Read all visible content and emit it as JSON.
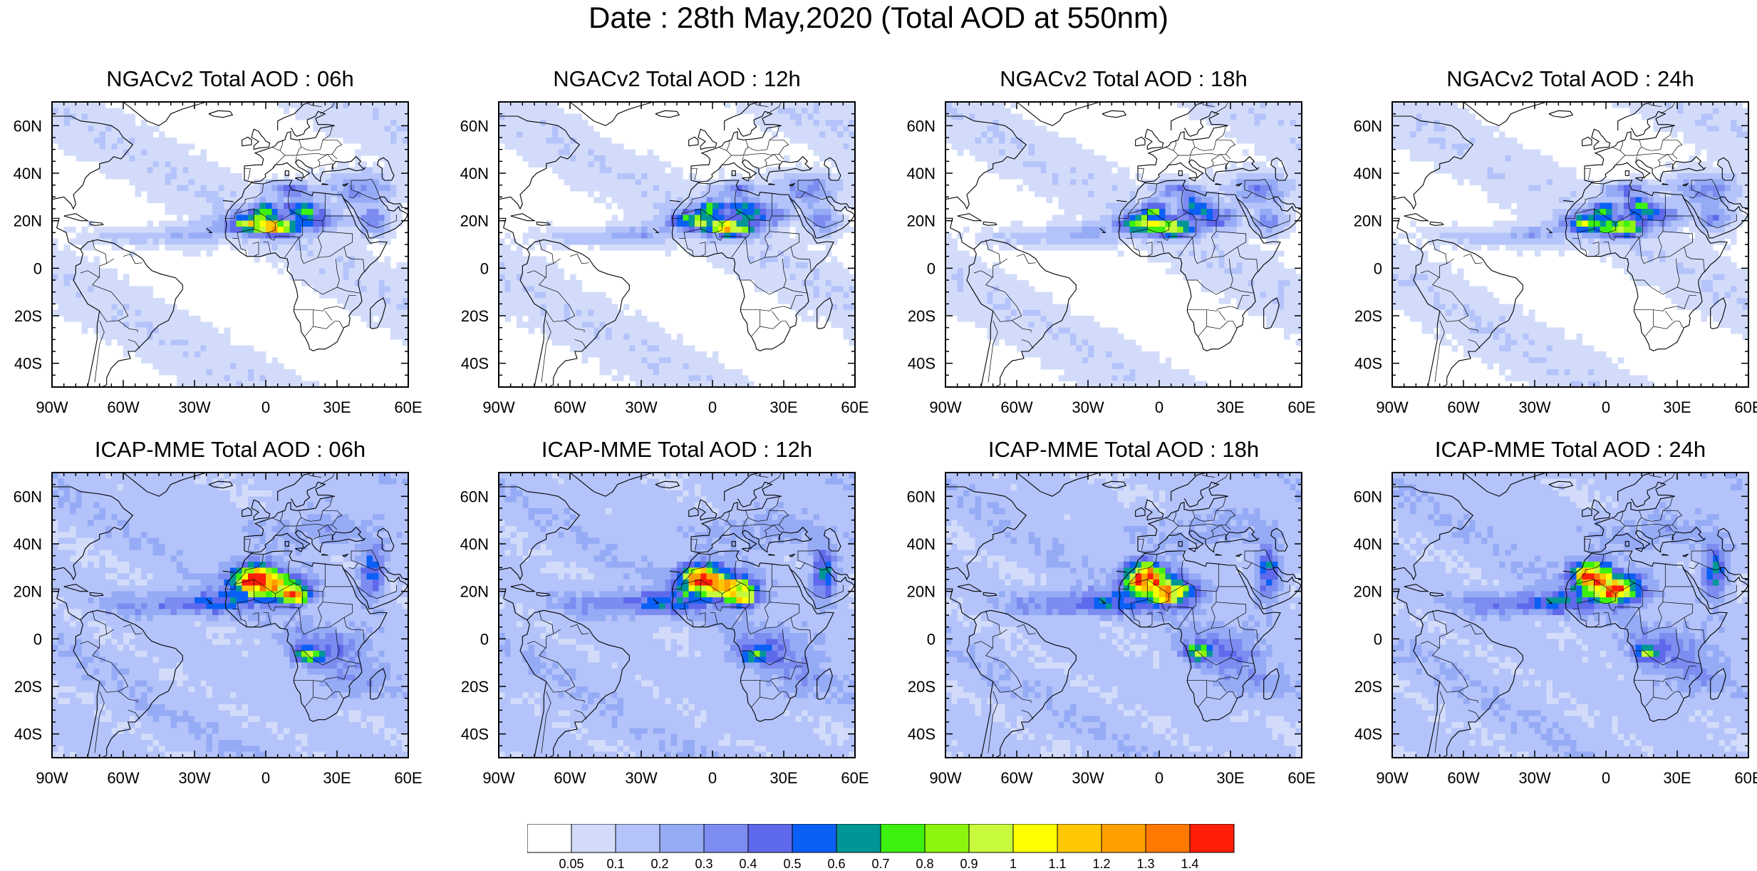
{
  "title": "Date : 28th May,2020 (Total AOD at 550nm)",
  "panels": [
    {
      "title": "NGACv2 Total AOD : 06h",
      "model": "NGACv2",
      "hour": "06h"
    },
    {
      "title": "NGACv2 Total AOD : 12h",
      "model": "NGACv2",
      "hour": "12h"
    },
    {
      "title": "NGACv2 Total AOD : 18h",
      "model": "NGACv2",
      "hour": "18h"
    },
    {
      "title": "NGACv2 Total AOD : 24h",
      "model": "NGACv2",
      "hour": "24h"
    },
    {
      "title": "ICAP-MME Total AOD : 06h",
      "model": "ICAP-MME",
      "hour": "06h"
    },
    {
      "title": "ICAP-MME Total AOD : 12h",
      "model": "ICAP-MME",
      "hour": "12h"
    },
    {
      "title": "ICAP-MME Total AOD : 18h",
      "model": "ICAP-MME",
      "hour": "18h"
    },
    {
      "title": "ICAP-MME Total AOD : 24h",
      "model": "ICAP-MME",
      "hour": "24h"
    }
  ],
  "lat_ticks": [
    {
      "value": 60,
      "label": "60N"
    },
    {
      "value": 40,
      "label": "40N"
    },
    {
      "value": 20,
      "label": "20N"
    },
    {
      "value": 0,
      "label": "0"
    },
    {
      "value": -20,
      "label": "20S"
    },
    {
      "value": -40,
      "label": "40S"
    }
  ],
  "lon_ticks": [
    {
      "value": -90,
      "label": "90W"
    },
    {
      "value": -60,
      "label": "60W"
    },
    {
      "value": -30,
      "label": "30W"
    },
    {
      "value": 0,
      "label": "0"
    },
    {
      "value": 30,
      "label": "30E"
    },
    {
      "value": 60,
      "label": "60E"
    }
  ],
  "map_extent": {
    "lon": [
      -90,
      60
    ],
    "lat": [
      -50,
      70
    ]
  },
  "colorbar": {
    "labels": [
      "0.05",
      "0.1",
      "0.2",
      "0.3",
      "0.4",
      "0.5",
      "0.6",
      "0.7",
      "0.8",
      "0.9",
      "1",
      "1.1",
      "1.2",
      "1.3",
      "1.4"
    ],
    "colors": [
      "#ffffff",
      "#d2dcfa",
      "#b4c3fa",
      "#96abf5",
      "#7d8cf0",
      "#5f69eb",
      "#0a5ff5",
      "#009696",
      "#3cf00f",
      "#8cf50f",
      "#c8fa3c",
      "#ffff00",
      "#ffc800",
      "#ffa000",
      "#ff7800",
      "#ff1e0a"
    ]
  }
}
